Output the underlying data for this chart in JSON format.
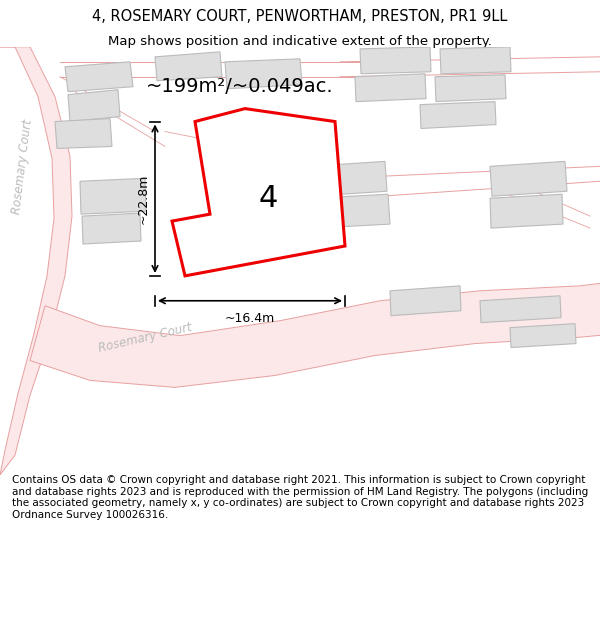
{
  "title": "4, ROSEMARY COURT, PENWORTHAM, PRESTON, PR1 9LL",
  "subtitle": "Map shows position and indicative extent of the property.",
  "footer": "Contains OS data © Crown copyright and database right 2021. This information is subject to Crown copyright and database rights 2023 and is reproduced with the permission of HM Land Registry. The polygons (including the associated geometry, namely x, y co-ordinates) are subject to Crown copyright and database rights 2023 Ordnance Survey 100026316.",
  "bg_color": "#ffffff",
  "map_bg": "#f8f8f8",
  "road_fill": "#fce8e8",
  "road_edge": "#e8a0a0",
  "building_fill": "#dedede",
  "building_edge": "#bbbbbb",
  "highlight_fill": "#ffffff",
  "highlight_edge": "#ee0000",
  "highlight_lw": 2.2,
  "street_label1": "Rosemary Court",
  "street_label2": "Rosemary Court",
  "area_label": "~199m²/~0.049ac.",
  "width_label": "~16.4m",
  "height_label": "~22.8m",
  "plot_label": "4",
  "title_fontsize": 10.5,
  "subtitle_fontsize": 9.5,
  "footer_fontsize": 7.5
}
